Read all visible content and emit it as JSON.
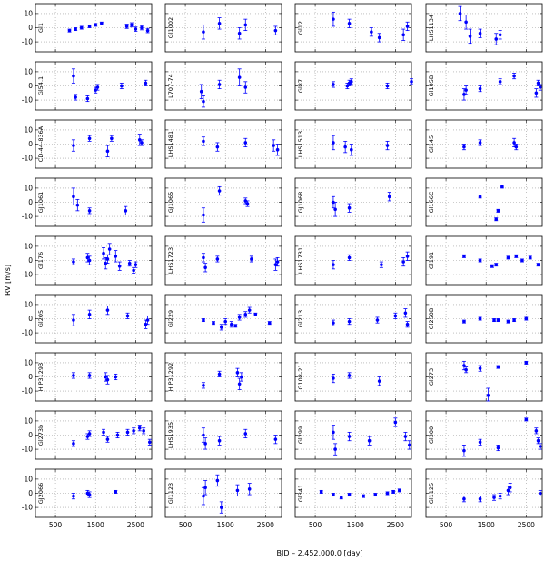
{
  "figure": {
    "xlabel": "BJD – 2,452,000.0 [day]",
    "ylabel": "RV [m/s]",
    "x_ticks": [
      500,
      1500,
      2500
    ],
    "y_ticks": [
      10,
      0,
      -10
    ],
    "xlim": [
      0,
      2900
    ],
    "ylim": [
      -17,
      17
    ]
  },
  "chart_data": {
    "type": "scatter",
    "xlabel": "BJD – 2,452,000.0 [day]",
    "ylabel": "RV [m/s]",
    "xlim": [
      0,
      2900
    ],
    "ylim": [
      -17,
      17
    ],
    "grid": "dotted",
    "marker_color": "#0000ff",
    "panels": [
      {
        "name": "Gl1",
        "points": [
          [
            850,
            -2,
            1
          ],
          [
            1000,
            -1,
            1
          ],
          [
            1150,
            0,
            1
          ],
          [
            1350,
            1,
            1
          ],
          [
            1500,
            2,
            1
          ],
          [
            1650,
            3,
            1
          ],
          [
            2280,
            1,
            1.5
          ],
          [
            2400,
            2,
            1.5
          ],
          [
            2500,
            -1,
            1.5
          ],
          [
            2650,
            0,
            1.5
          ],
          [
            2800,
            -2,
            1.5
          ]
        ]
      },
      {
        "name": "Gl1002",
        "points": [
          [
            950,
            -3,
            5
          ],
          [
            1350,
            3,
            4
          ],
          [
            1850,
            -4,
            4
          ],
          [
            2000,
            2,
            4
          ],
          [
            2750,
            -2,
            3
          ]
        ]
      },
      {
        "name": "Gl12",
        "points": [
          [
            950,
            6,
            5
          ],
          [
            1350,
            3,
            3
          ],
          [
            1900,
            -3,
            3
          ],
          [
            2100,
            -7,
            3
          ],
          [
            2700,
            -5,
            4
          ],
          [
            2800,
            1,
            3
          ]
        ]
      },
      {
        "name": "LHS1134",
        "points": [
          [
            850,
            10,
            5
          ],
          [
            1000,
            4,
            5
          ],
          [
            1100,
            -6,
            5
          ],
          [
            1350,
            -4,
            3
          ],
          [
            1750,
            -8,
            4
          ],
          [
            1850,
            -5,
            3
          ]
        ]
      },
      {
        "name": "Gl54.1",
        "points": [
          [
            950,
            7,
            5
          ],
          [
            1000,
            -8,
            2
          ],
          [
            1300,
            -9,
            2
          ],
          [
            1500,
            -3,
            2
          ],
          [
            1550,
            -1,
            2
          ],
          [
            2150,
            0,
            2
          ],
          [
            2750,
            2,
            2
          ]
        ]
      },
      {
        "name": "L707-74",
        "points": [
          [
            900,
            -4,
            5
          ],
          [
            950,
            -11,
            4
          ],
          [
            1350,
            1,
            3
          ],
          [
            1850,
            6,
            6
          ],
          [
            2000,
            -1,
            4
          ]
        ]
      },
      {
        "name": "Gl87",
        "points": [
          [
            950,
            1,
            2
          ],
          [
            1300,
            0,
            2
          ],
          [
            1350,
            2,
            2
          ],
          [
            1400,
            3,
            2
          ],
          [
            2300,
            0,
            2
          ],
          [
            2900,
            3,
            2
          ]
        ]
      },
      {
        "name": "Gl105B",
        "points": [
          [
            950,
            -6,
            4
          ],
          [
            1000,
            -3,
            3
          ],
          [
            1350,
            -2,
            2
          ],
          [
            1850,
            3,
            2
          ],
          [
            2200,
            7,
            2
          ],
          [
            2750,
            -5,
            3
          ],
          [
            2800,
            2,
            2
          ],
          [
            2850,
            -1,
            2
          ]
        ]
      },
      {
        "name": "CD-44-836A",
        "points": [
          [
            950,
            -1,
            4
          ],
          [
            1350,
            4,
            2
          ],
          [
            1800,
            -5,
            4
          ],
          [
            1900,
            4,
            2
          ],
          [
            2600,
            3,
            4
          ],
          [
            2650,
            1,
            2
          ]
        ]
      },
      {
        "name": "LHS1481",
        "points": [
          [
            950,
            2,
            3
          ],
          [
            1300,
            -2,
            3
          ],
          [
            2000,
            1,
            3
          ],
          [
            2700,
            -1,
            4
          ],
          [
            2800,
            -4,
            4
          ]
        ]
      },
      {
        "name": "LHS1513",
        "points": [
          [
            950,
            1,
            5
          ],
          [
            1250,
            -2,
            4
          ],
          [
            1400,
            -4,
            4
          ],
          [
            2300,
            -1,
            3
          ]
        ]
      },
      {
        "name": "Gl145",
        "points": [
          [
            950,
            -2,
            2
          ],
          [
            1350,
            1,
            2
          ],
          [
            2200,
            1,
            3
          ],
          [
            2250,
            -2,
            2
          ]
        ]
      },
      {
        "name": "GJ1061",
        "points": [
          [
            950,
            4,
            6
          ],
          [
            1050,
            -2,
            4
          ],
          [
            1350,
            -6,
            2
          ],
          [
            2250,
            -6,
            3
          ]
        ]
      },
      {
        "name": "GJ1065",
        "points": [
          [
            950,
            -9,
            5
          ],
          [
            1350,
            8,
            3
          ],
          [
            2000,
            1,
            2
          ],
          [
            2050,
            -1,
            2
          ]
        ]
      },
      {
        "name": "GJ1068",
        "points": [
          [
            950,
            0,
            4
          ],
          [
            1000,
            -5,
            5
          ],
          [
            1350,
            -4,
            3
          ],
          [
            2350,
            4,
            3
          ]
        ]
      },
      {
        "name": "Gl166C",
        "points": [
          [
            1350,
            4,
            1
          ],
          [
            1750,
            -12,
            1
          ],
          [
            1800,
            -6,
            1
          ],
          [
            1900,
            11,
            1
          ]
        ]
      },
      {
        "name": "Gl176",
        "points": [
          [
            950,
            -1,
            2
          ],
          [
            1300,
            2,
            3
          ],
          [
            1350,
            0,
            3
          ],
          [
            1700,
            5,
            4
          ],
          [
            1750,
            -2,
            4
          ],
          [
            1800,
            1,
            3
          ],
          [
            1850,
            8,
            4
          ],
          [
            2000,
            3,
            4
          ],
          [
            2100,
            -4,
            3
          ],
          [
            2350,
            -2,
            2
          ],
          [
            2450,
            -7,
            2
          ],
          [
            2500,
            -3,
            2
          ]
        ]
      },
      {
        "name": "LHS1723",
        "points": [
          [
            950,
            2,
            3
          ],
          [
            1000,
            -5,
            3
          ],
          [
            1300,
            1,
            2
          ],
          [
            2150,
            1,
            2
          ],
          [
            2750,
            -3,
            4
          ],
          [
            2800,
            -1,
            3
          ]
        ]
      },
      {
        "name": "LHS1731",
        "points": [
          [
            950,
            -3,
            3
          ],
          [
            1350,
            2,
            2
          ],
          [
            2150,
            -3,
            2
          ],
          [
            2700,
            -1,
            3
          ],
          [
            2800,
            3,
            3
          ]
        ]
      },
      {
        "name": "Gl191",
        "points": [
          [
            950,
            3,
            1
          ],
          [
            1350,
            0,
            1
          ],
          [
            1650,
            -4,
            1
          ],
          [
            1750,
            -3,
            1
          ],
          [
            2050,
            2,
            1
          ],
          [
            2250,
            3,
            1
          ],
          [
            2400,
            0,
            1
          ],
          [
            2600,
            2,
            1
          ],
          [
            2800,
            -3,
            1
          ]
        ]
      },
      {
        "name": "Gl205",
        "points": [
          [
            950,
            -1,
            4
          ],
          [
            1350,
            3,
            3
          ],
          [
            1800,
            6,
            3
          ],
          [
            2300,
            2,
            2
          ],
          [
            2750,
            -4,
            3
          ],
          [
            2800,
            -1,
            3
          ]
        ]
      },
      {
        "name": "Gl229",
        "points": [
          [
            950,
            -1,
            1
          ],
          [
            1200,
            -3,
            1
          ],
          [
            1400,
            -6,
            2
          ],
          [
            1500,
            -2,
            2
          ],
          [
            1650,
            -4,
            2
          ],
          [
            1750,
            -5,
            1
          ],
          [
            1850,
            1,
            2
          ],
          [
            2000,
            3,
            2
          ],
          [
            2100,
            6,
            2
          ],
          [
            2250,
            3,
            1
          ],
          [
            2600,
            -3,
            1
          ]
        ]
      },
      {
        "name": "Gl213",
        "points": [
          [
            950,
            -3,
            2
          ],
          [
            1350,
            -2,
            2
          ],
          [
            2050,
            -1,
            2
          ],
          [
            2500,
            2,
            2
          ],
          [
            2750,
            4,
            3
          ],
          [
            2800,
            -4,
            2
          ]
        ]
      },
      {
        "name": "Gl250B",
        "points": [
          [
            950,
            -2,
            1
          ],
          [
            1350,
            0,
            1
          ],
          [
            1700,
            -1,
            1
          ],
          [
            1800,
            -1,
            1
          ],
          [
            2050,
            -2,
            1
          ],
          [
            2200,
            -1,
            1
          ],
          [
            2500,
            0,
            1
          ]
        ]
      },
      {
        "name": "HIP31293",
        "points": [
          [
            950,
            1,
            2
          ],
          [
            1350,
            1,
            2
          ],
          [
            1750,
            0,
            3
          ],
          [
            1800,
            -2,
            3
          ],
          [
            2000,
            0,
            2
          ]
        ]
      },
      {
        "name": "HIP31292",
        "points": [
          [
            950,
            -6,
            2
          ],
          [
            1350,
            2,
            2
          ],
          [
            1800,
            3,
            3
          ],
          [
            1850,
            -5,
            4
          ],
          [
            1900,
            0,
            3
          ]
        ]
      },
      {
        "name": "G108-21",
        "points": [
          [
            950,
            -1,
            3
          ],
          [
            1350,
            1,
            2
          ],
          [
            2100,
            -3,
            3
          ]
        ]
      },
      {
        "name": "Gl273",
        "points": [
          [
            950,
            8,
            3
          ],
          [
            1000,
            5,
            2
          ],
          [
            1350,
            6,
            2
          ],
          [
            1550,
            -13,
            5
          ],
          [
            1800,
            7,
            1
          ],
          [
            2500,
            10,
            1
          ]
        ]
      },
      {
        "name": "Gl273b",
        "points": [
          [
            950,
            -6,
            2
          ],
          [
            1300,
            -1,
            2
          ],
          [
            1350,
            1,
            2
          ],
          [
            1700,
            2,
            2
          ],
          [
            1800,
            -3,
            2
          ],
          [
            2050,
            0,
            2
          ],
          [
            2300,
            2,
            2
          ],
          [
            2450,
            3,
            2
          ],
          [
            2600,
            5,
            2
          ],
          [
            2700,
            3,
            2
          ],
          [
            2850,
            -5,
            2
          ]
        ]
      },
      {
        "name": "LHS1935",
        "points": [
          [
            950,
            0,
            5
          ],
          [
            1000,
            -6,
            4
          ],
          [
            1350,
            -4,
            3
          ],
          [
            2000,
            1,
            3
          ],
          [
            2750,
            -3,
            3
          ]
        ]
      },
      {
        "name": "Gl299",
        "points": [
          [
            950,
            2,
            5
          ],
          [
            1000,
            -10,
            4
          ],
          [
            1350,
            -1,
            3
          ],
          [
            1850,
            -4,
            3
          ],
          [
            2500,
            9,
            3
          ],
          [
            2750,
            -1,
            3
          ],
          [
            2850,
            -7,
            3
          ]
        ]
      },
      {
        "name": "Gl300",
        "points": [
          [
            950,
            -11,
            4
          ],
          [
            1350,
            -5,
            2
          ],
          [
            1800,
            -9,
            2
          ],
          [
            2500,
            11,
            1
          ],
          [
            2750,
            3,
            2
          ],
          [
            2800,
            -4,
            2
          ],
          [
            2850,
            -8,
            2
          ]
        ]
      },
      {
        "name": "GJ2066",
        "points": [
          [
            950,
            -2,
            2
          ],
          [
            1300,
            0,
            2
          ],
          [
            1350,
            -1,
            2
          ],
          [
            2000,
            1,
            1
          ]
        ]
      },
      {
        "name": "Gl1123",
        "points": [
          [
            950,
            -2,
            6
          ],
          [
            1000,
            4,
            5
          ],
          [
            1300,
            9,
            4
          ],
          [
            1400,
            -10,
            4
          ],
          [
            1800,
            2,
            4
          ],
          [
            2100,
            3,
            4
          ]
        ]
      },
      {
        "name": "Gl341",
        "points": [
          [
            650,
            1,
            1
          ],
          [
            950,
            -1,
            1
          ],
          [
            1150,
            -3,
            1
          ],
          [
            1350,
            -1,
            1
          ],
          [
            1700,
            -2,
            1
          ],
          [
            2000,
            -1,
            1
          ],
          [
            2300,
            0,
            1
          ],
          [
            2450,
            1,
            1
          ],
          [
            2600,
            2,
            1
          ]
        ]
      },
      {
        "name": "Gl1125",
        "points": [
          [
            950,
            -4,
            2
          ],
          [
            1350,
            -4,
            2
          ],
          [
            1700,
            -3,
            2
          ],
          [
            1850,
            -2,
            2
          ],
          [
            2050,
            2,
            3
          ],
          [
            2100,
            4,
            3
          ],
          [
            2850,
            0,
            2
          ]
        ]
      }
    ]
  }
}
